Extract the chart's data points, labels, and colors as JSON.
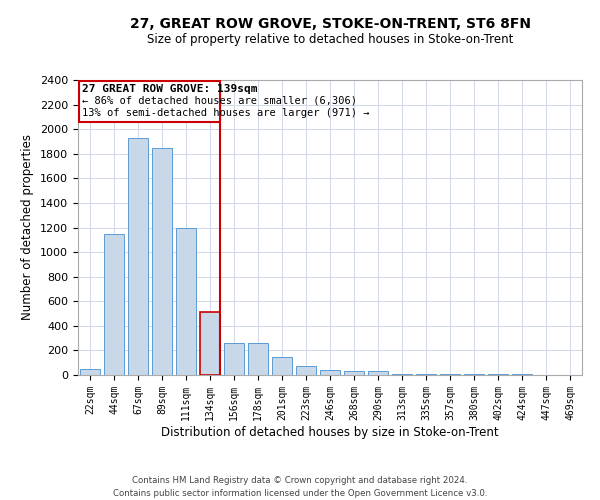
{
  "title": "27, GREAT ROW GROVE, STOKE-ON-TRENT, ST6 8FN",
  "subtitle": "Size of property relative to detached houses in Stoke-on-Trent",
  "xlabel": "Distribution of detached houses by size in Stoke-on-Trent",
  "ylabel": "Number of detached properties",
  "footer_line1": "Contains HM Land Registry data © Crown copyright and database right 2024.",
  "footer_line2": "Contains public sector information licensed under the Open Government Licence v3.0.",
  "annotation_title": "27 GREAT ROW GROVE: 139sqm",
  "annotation_line2": "← 86% of detached houses are smaller (6,306)",
  "annotation_line3": "13% of semi-detached houses are larger (971) →",
  "bar_color": "#c8d8e8",
  "bar_edge_color": "#5b9bd5",
  "vline_color": "#cc0000",
  "annotation_box_color": "#cc0000",
  "grid_color": "#d0d8e8",
  "ylim": [
    0,
    2400
  ],
  "yticks": [
    0,
    200,
    400,
    600,
    800,
    1000,
    1200,
    1400,
    1600,
    1800,
    2000,
    2200,
    2400
  ],
  "categories": [
    "22sqm",
    "44sqm",
    "67sqm",
    "89sqm",
    "111sqm",
    "134sqm",
    "156sqm",
    "178sqm",
    "201sqm",
    "223sqm",
    "246sqm",
    "268sqm",
    "290sqm",
    "313sqm",
    "335sqm",
    "357sqm",
    "380sqm",
    "402sqm",
    "424sqm",
    "447sqm",
    "469sqm"
  ],
  "values": [
    50,
    1150,
    1930,
    1850,
    1200,
    510,
    260,
    260,
    150,
    75,
    40,
    35,
    30,
    10,
    10,
    5,
    5,
    5,
    5,
    0,
    0
  ],
  "highlight_bar_index": 5,
  "highlight_bar_edge_color": "#cc0000"
}
